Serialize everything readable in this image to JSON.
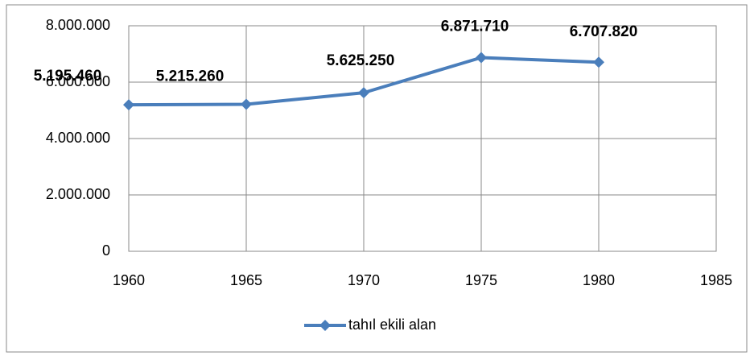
{
  "chart_data": {
    "type": "line",
    "x": [
      1960,
      1965,
      1970,
      1975,
      1980
    ],
    "series": [
      {
        "name": "tahıl ekili alan",
        "color": "#4a7ebb",
        "values": [
          5195460,
          5215260,
          5625250,
          6871710,
          6707820
        ],
        "value_labels": [
          "5.195.460",
          "5.215.260",
          "5.625.250",
          "6.871.710",
          "6.707.820"
        ]
      }
    ],
    "xlim": [
      1960,
      1985
    ],
    "xticks": [
      1960,
      1965,
      1970,
      1975,
      1980,
      1985
    ],
    "ylim": [
      0,
      8000000
    ],
    "yticks": [
      0,
      {
        "value": 2000000,
        "label": "2.000.000"
      },
      {
        "value": 4000000,
        "label": "4.000.000"
      },
      {
        "value": 6000000,
        "label": "6.000.000"
      },
      {
        "value": 8000000,
        "label": "8.000.000"
      }
    ],
    "grid": true,
    "legend": "bottom"
  }
}
